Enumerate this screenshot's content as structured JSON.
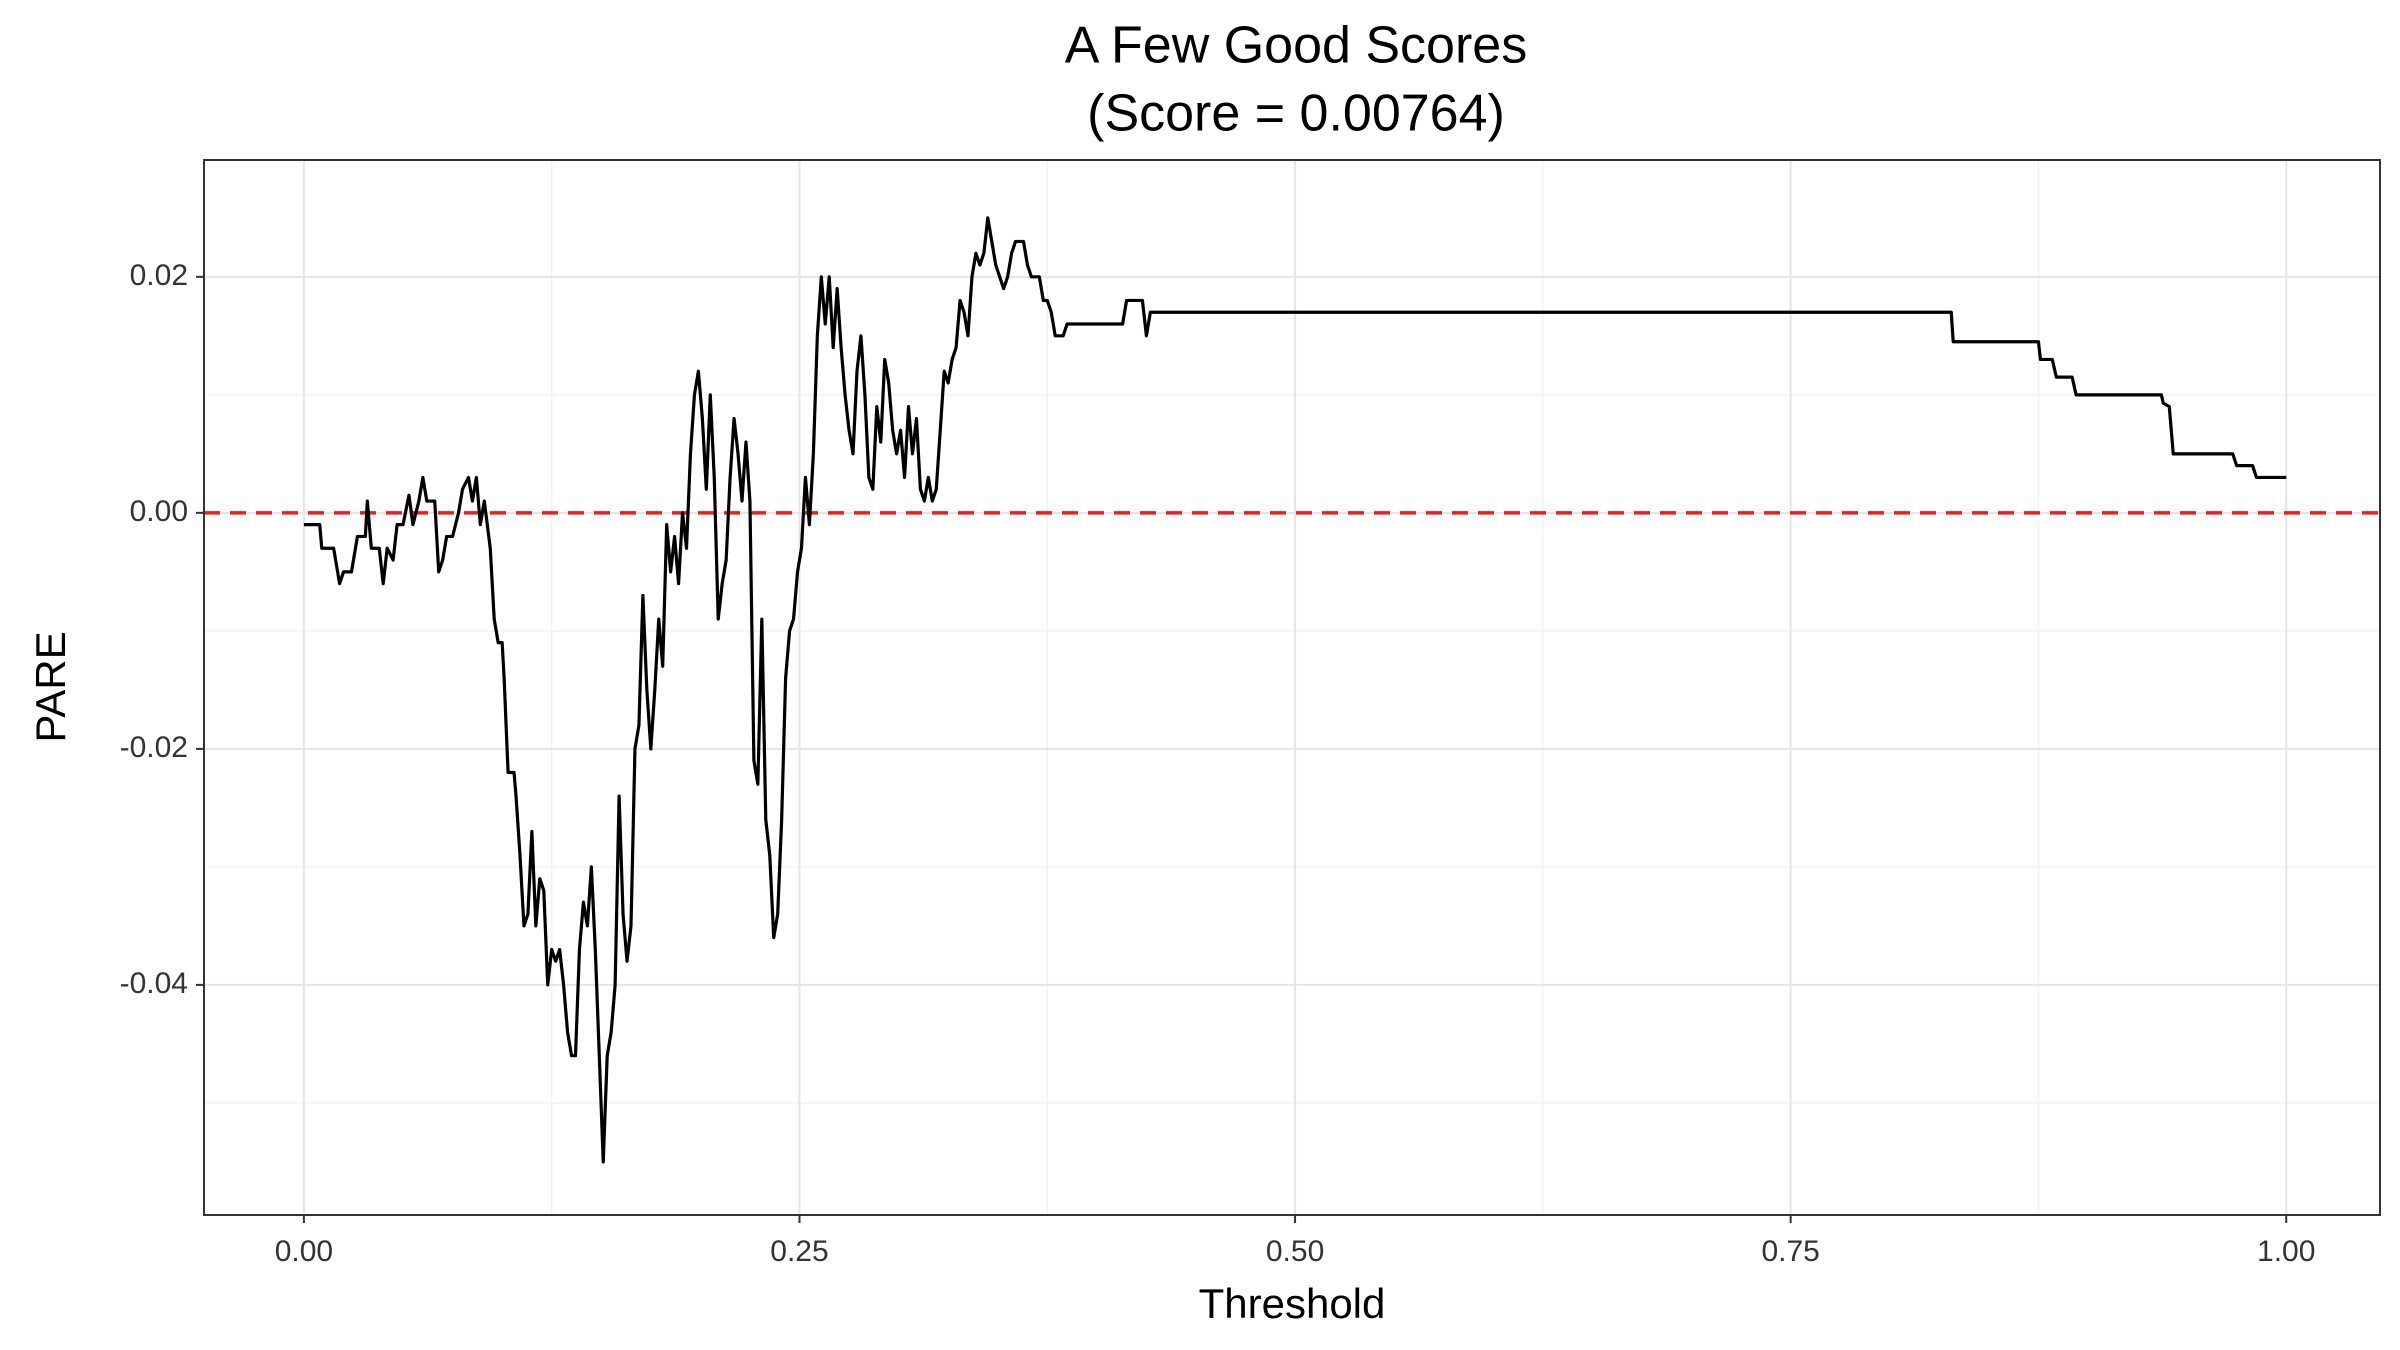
{
  "chart_data": {
    "type": "line",
    "title": "A Few Good Scores",
    "subtitle": "(Score = 0.00764)",
    "x_label": "Threshold",
    "y_label": "PARE",
    "xlim": [
      -0.0504,
      1.0473
    ],
    "ylim": [
      -0.0595,
      0.0299
    ],
    "xticks": [
      {
        "value": 0,
        "label": "0.00"
      },
      {
        "value": 0.25,
        "label": "0.25"
      },
      {
        "value": 0.5,
        "label": "0.50"
      },
      {
        "value": 0.75,
        "label": "0.75"
      },
      {
        "value": 1,
        "label": "1.00"
      }
    ],
    "yticks": [
      {
        "value": -0.04,
        "label": "-0.04"
      },
      {
        "value": -0.02,
        "label": "-0.02"
      },
      {
        "value": 0,
        "label": "0.00"
      },
      {
        "value": 0.02,
        "label": "0.02"
      }
    ],
    "x_minor_grid": [
      0.125,
      0.375,
      0.625,
      0.875
    ],
    "y_minor_grid": [
      -0.05,
      -0.03,
      -0.01,
      0.01
    ],
    "grid": true,
    "hline": {
      "value": 0,
      "color": "#e8211c",
      "dashed": true
    },
    "series": [
      {
        "color": "#000000",
        "x": [
          0,
          0.008,
          0.009,
          0.015,
          0.018,
          0.02,
          0.024,
          0.027,
          0.031,
          0.032,
          0.034,
          0.038,
          0.04,
          0.042,
          0.045,
          0.047,
          0.05,
          0.053,
          0.055,
          0.058,
          0.06,
          0.062,
          0.066,
          0.068,
          0.07,
          0.072,
          0.075,
          0.078,
          0.08,
          0.083,
          0.085,
          0.087,
          0.089,
          0.091,
          0.094,
          0.096,
          0.098,
          0.1,
          0.101,
          0.103,
          0.106,
          0.107,
          0.109,
          0.111,
          0.113,
          0.115,
          0.117,
          0.119,
          0.121,
          0.123,
          0.125,
          0.127,
          0.129,
          0.131,
          0.133,
          0.135,
          0.137,
          0.139,
          0.141,
          0.143,
          0.145,
          0.147,
          0.149,
          0.151,
          0.153,
          0.155,
          0.157,
          0.159,
          0.161,
          0.163,
          0.165,
          0.167,
          0.169,
          0.171,
          0.173,
          0.175,
          0.177,
          0.179,
          0.181,
          0.183,
          0.185,
          0.187,
          0.189,
          0.191,
          0.193,
          0.195,
          0.197,
          0.199,
          0.201,
          0.203,
          0.205,
          0.207,
          0.209,
          0.211,
          0.213,
          0.215,
          0.217,
          0.219,
          0.221,
          0.223,
          0.225,
          0.227,
          0.229,
          0.231,
          0.233,
          0.235,
          0.237,
          0.239,
          0.241,
          0.243,
          0.245,
          0.247,
          0.249,
          0.251,
          0.253,
          0.255,
          0.257,
          0.259,
          0.261,
          0.263,
          0.265,
          0.267,
          0.269,
          0.271,
          0.273,
          0.275,
          0.277,
          0.279,
          0.281,
          0.283,
          0.285,
          0.287,
          0.289,
          0.291,
          0.293,
          0.295,
          0.297,
          0.299,
          0.301,
          0.303,
          0.305,
          0.307,
          0.309,
          0.311,
          0.313,
          0.315,
          0.317,
          0.319,
          0.321,
          0.323,
          0.325,
          0.327,
          0.329,
          0.331,
          0.333,
          0.335,
          0.337,
          0.339,
          0.341,
          0.343,
          0.345,
          0.347,
          0.349,
          0.351,
          0.353,
          0.355,
          0.357,
          0.359,
          0.363,
          0.365,
          0.367,
          0.371,
          0.373,
          0.375,
          0.377,
          0.379,
          0.383,
          0.385,
          0.413,
          0.415,
          0.423,
          0.425,
          0.427,
          0.831,
          0.832,
          0.875,
          0.876,
          0.882,
          0.884,
          0.892,
          0.894,
          0.937,
          0.938,
          0.941,
          0.943,
          0.973,
          0.975,
          0.983,
          0.985,
          1
        ],
        "values": [
          -0.001,
          -0.001,
          -0.003,
          -0.003,
          -0.006,
          -0.005,
          -0.005,
          -0.002,
          -0.002,
          0.001,
          -0.003,
          -0.003,
          -0.006,
          -0.003,
          -0.004,
          -0.001,
          -0.001,
          0.0015,
          -0.001,
          0.001,
          0.003,
          0.001,
          0.001,
          -0.005,
          -0.004,
          -0.002,
          -0.002,
          0,
          0.002,
          0.003,
          0.001,
          0.003,
          -0.001,
          0.001,
          -0.003,
          -0.009,
          -0.011,
          -0.011,
          -0.014,
          -0.022,
          -0.022,
          -0.024,
          -0.029,
          -0.035,
          -0.034,
          -0.027,
          -0.035,
          -0.031,
          -0.032,
          -0.04,
          -0.037,
          -0.038,
          -0.037,
          -0.04,
          -0.044,
          -0.046,
          -0.046,
          -0.037,
          -0.033,
          -0.035,
          -0.03,
          -0.037,
          -0.046,
          -0.055,
          -0.046,
          -0.044,
          -0.04,
          -0.024,
          -0.034,
          -0.038,
          -0.035,
          -0.02,
          -0.018,
          -0.007,
          -0.015,
          -0.02,
          -0.015,
          -0.009,
          -0.013,
          -0.001,
          -0.005,
          -0.002,
          -0.006,
          0,
          -0.003,
          0.005,
          0.01,
          0.012,
          0.008,
          0.002,
          0.01,
          0.003,
          -0.009,
          -0.006,
          -0.004,
          0.003,
          0.008,
          0.005,
          0.001,
          0.006,
          0.001,
          -0.021,
          -0.023,
          -0.009,
          -0.026,
          -0.029,
          -0.036,
          -0.034,
          -0.026,
          -0.014,
          -0.01,
          -0.009,
          -0.005,
          -0.003,
          0.003,
          -0.001,
          0.005,
          0.015,
          0.02,
          0.016,
          0.02,
          0.014,
          0.019,
          0.014,
          0.01,
          0.007,
          0.005,
          0.012,
          0.015,
          0.01,
          0.003,
          0.002,
          0.009,
          0.006,
          0.013,
          0.011,
          0.007,
          0.005,
          0.007,
          0.003,
          0.009,
          0.005,
          0.008,
          0.002,
          0.001,
          0.003,
          0.001,
          0.002,
          0.007,
          0.012,
          0.011,
          0.013,
          0.014,
          0.018,
          0.017,
          0.015,
          0.02,
          0.022,
          0.021,
          0.022,
          0.025,
          0.023,
          0.021,
          0.02,
          0.019,
          0.02,
          0.022,
          0.023,
          0.023,
          0.021,
          0.02,
          0.02,
          0.018,
          0.018,
          0.017,
          0.015,
          0.015,
          0.016,
          0.016,
          0.018,
          0.018,
          0.015,
          0.017,
          0.017,
          0.0145,
          0.0145,
          0.013,
          0.013,
          0.0115,
          0.0115,
          0.01,
          0.01,
          0.0093,
          0.009,
          0.005,
          0.005,
          0.004,
          0.004,
          0.003,
          0.003
        ]
      }
    ]
  }
}
